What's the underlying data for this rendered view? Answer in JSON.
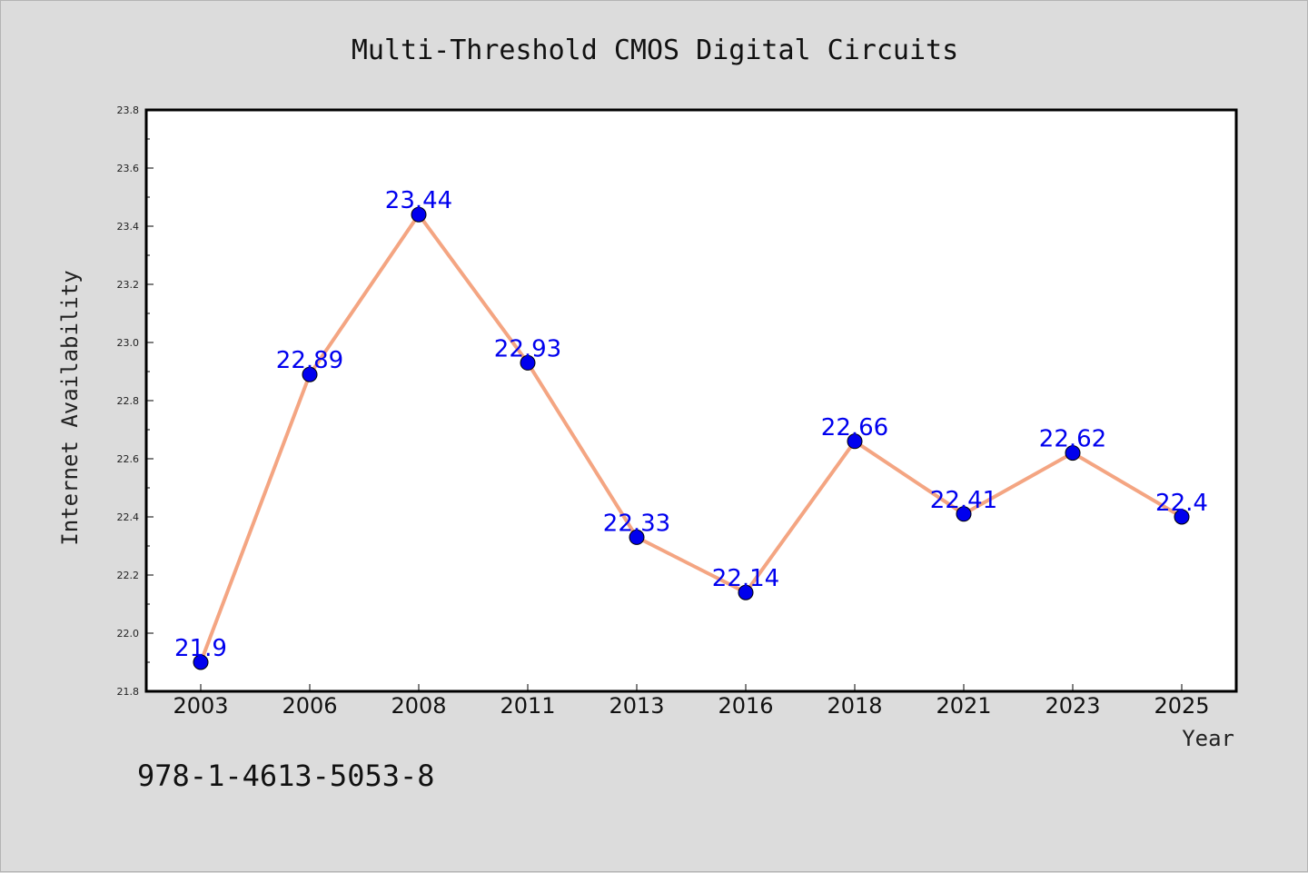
{
  "chart_data": {
    "type": "line",
    "title": "Multi-Threshold CMOS Digital Circuits",
    "xlabel": "Year",
    "ylabel": "Internet Availability",
    "categories": [
      "2003",
      "2006",
      "2008",
      "2011",
      "2013",
      "2016",
      "2018",
      "2021",
      "2023",
      "2025"
    ],
    "series": [
      {
        "values": [
          21.9,
          22.89,
          23.44,
          22.93,
          22.33,
          22.14,
          22.66,
          22.41,
          22.62,
          22.4
        ],
        "data_labels": [
          "21.9",
          "22.89",
          "23.44",
          "22.93",
          "22.33",
          "22.14",
          "22.66",
          "22.41",
          "22.62",
          "22.4"
        ]
      }
    ],
    "ylim": [
      21.8,
      23.8
    ],
    "yticks": [
      "21.8",
      "22.0",
      "22.2",
      "22.4",
      "22.6",
      "22.8",
      "23.0",
      "23.2",
      "23.4",
      "23.6",
      "23.8"
    ],
    "grid": false,
    "colors": {
      "line": "#f4a582",
      "marker": "#0000ee",
      "data_label": "#0000ee",
      "plot_background": "#ffffff",
      "figure_background": "#dcdcdc"
    }
  },
  "annotation": {
    "isbn": "978-1-4613-5053-8"
  }
}
